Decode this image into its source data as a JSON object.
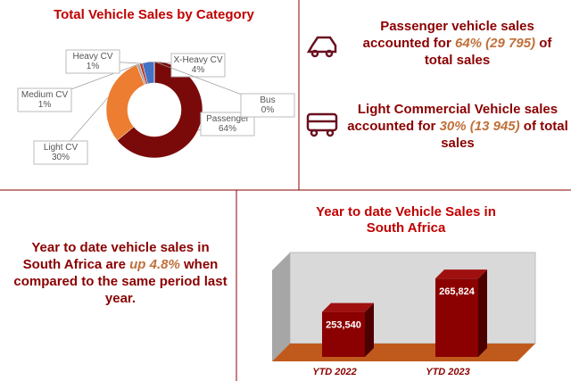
{
  "chart_data": [
    {
      "type": "donut",
      "title": "Total Vehicle Sales by Category",
      "categories": [
        "Passenger",
        "Light CV",
        "Medium CV",
        "Heavy CV",
        "X-Heavy CV",
        "Bus"
      ],
      "values": [
        64,
        30,
        1,
        1,
        4,
        0
      ],
      "value_labels": [
        "64%",
        "30%",
        "1%",
        "1%",
        "4%",
        "0%"
      ],
      "colors": [
        "#7a0a0a",
        "#ed7d31",
        "#a5a5a5",
        "#c0392b",
        "#4472c4",
        "#5b9bd5"
      ]
    },
    {
      "type": "bar3d",
      "title": "Year to date Vehicle Sales in South Africa",
      "categories": [
        "YTD 2022",
        "YTD 2023"
      ],
      "values": [
        253540,
        265824
      ],
      "value_labels": [
        "253,540",
        "265,824"
      ],
      "color": "#8b0000",
      "ylim": [
        237000,
        280000
      ]
    }
  ],
  "text_panels": [
    {
      "parts": [
        "Passenger vehicle sales accounted for ",
        "64% (29 795)",
        " of total sales"
      ]
    },
    {
      "parts": [
        "Light Commercial Vehicle sales accounted for ",
        "30% (13 945)",
        " of total sales"
      ]
    },
    {
      "parts": [
        "Year to date vehicle sales in South Africa are ",
        "up 4.8%",
        " when compared to the same period last year."
      ]
    }
  ]
}
